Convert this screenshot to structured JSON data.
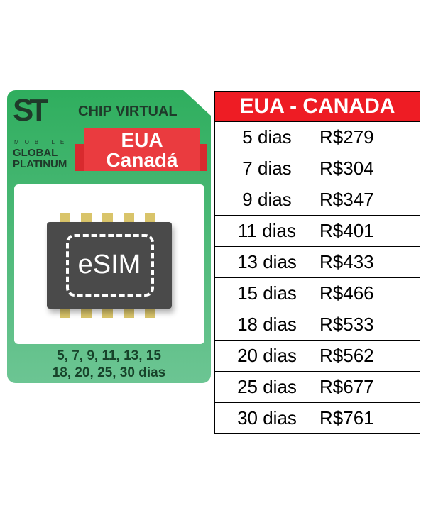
{
  "card": {
    "logo": "ST",
    "logo_sub": "MOBILE",
    "brand_line1": "GLOBAL",
    "brand_line2": "PLATINUM",
    "title": "CHIP VIRTUAL",
    "banner_line1": "EUA",
    "banner_line2": "Canadá",
    "chip_label": "eSIM",
    "days_line1": "5, 7, 9, 11, 13, 15",
    "days_line2": "18, 20, 25, 30 dias"
  },
  "colors": {
    "green": "#2fae5e",
    "red": "#ee1c24",
    "chip": "#4a4a4a",
    "pin": "#d9c46a"
  },
  "table": {
    "title": "EUA - CANADA",
    "currency": "R$",
    "rows": [
      {
        "days": "5 dias",
        "price": "279"
      },
      {
        "days": "7 dias",
        "price": "304"
      },
      {
        "days": "9 dias",
        "price": "347"
      },
      {
        "days": "11 dias",
        "price": "401"
      },
      {
        "days": "13 dias",
        "price": "433"
      },
      {
        "days": "15 dias",
        "price": "466"
      },
      {
        "days": "18 dias",
        "price": "533"
      },
      {
        "days": "20 dias",
        "price": "562"
      },
      {
        "days": "25 dias",
        "price": "677"
      },
      {
        "days": "30 dias",
        "price": "761"
      }
    ]
  }
}
